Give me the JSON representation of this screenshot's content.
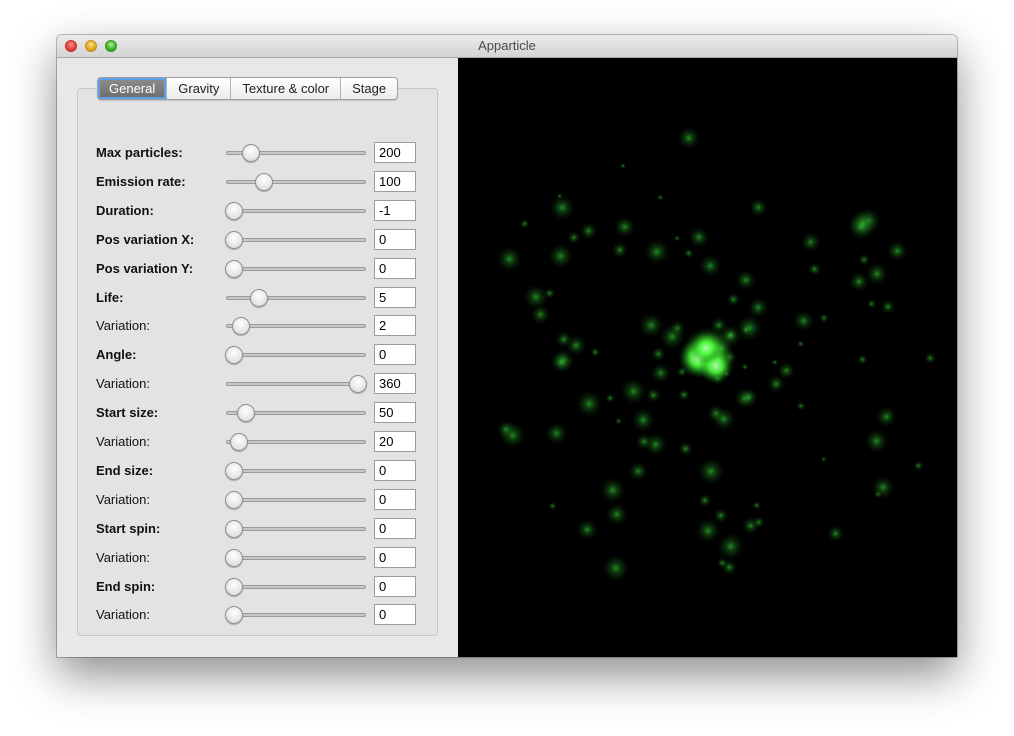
{
  "window": {
    "title": "Apparticle"
  },
  "tabs": [
    {
      "label": "General",
      "active": true
    },
    {
      "label": "Gravity",
      "active": false
    },
    {
      "label": "Texture & color",
      "active": false
    },
    {
      "label": "Stage",
      "active": false
    }
  ],
  "params": [
    {
      "label": "Max particles:",
      "bold": true,
      "value": "200",
      "slider_fraction": 0.14
    },
    {
      "label": "Emission rate:",
      "bold": true,
      "value": "100",
      "slider_fraction": 0.24
    },
    {
      "label": "Duration:",
      "bold": true,
      "value": "-1",
      "slider_fraction": 0.0
    },
    {
      "label": "Pos variation X:",
      "bold": true,
      "value": "0",
      "slider_fraction": 0.0
    },
    {
      "label": "Pos variation Y:",
      "bold": true,
      "value": "0",
      "slider_fraction": 0.0
    },
    {
      "label": "Life:",
      "bold": true,
      "value": "5",
      "slider_fraction": 0.2
    },
    {
      "label": "Variation:",
      "bold": false,
      "value": "2",
      "slider_fraction": 0.06
    },
    {
      "label": "Angle:",
      "bold": true,
      "value": "0",
      "slider_fraction": 0.0
    },
    {
      "label": "Variation:",
      "bold": false,
      "value": "360",
      "slider_fraction": 1.0
    },
    {
      "label": "Start size:",
      "bold": true,
      "value": "50",
      "slider_fraction": 0.1
    },
    {
      "label": "Variation:",
      "bold": false,
      "value": "20",
      "slider_fraction": 0.04
    },
    {
      "label": "End size:",
      "bold": true,
      "value": "0",
      "slider_fraction": 0.0
    },
    {
      "label": "Variation:",
      "bold": false,
      "value": "0",
      "slider_fraction": 0.0
    },
    {
      "label": "Start spin:",
      "bold": true,
      "value": "0",
      "slider_fraction": 0.0
    },
    {
      "label": "Variation:",
      "bold": false,
      "value": "0",
      "slider_fraction": 0.0
    },
    {
      "label": "End spin:",
      "bold": true,
      "value": "0",
      "slider_fraction": 0.0
    },
    {
      "label": "Variation:",
      "bold": false,
      "value": "0",
      "slider_fraction": 0.0
    }
  ],
  "preview": {
    "background": "#000000",
    "particle_color": "#3cff3c"
  }
}
